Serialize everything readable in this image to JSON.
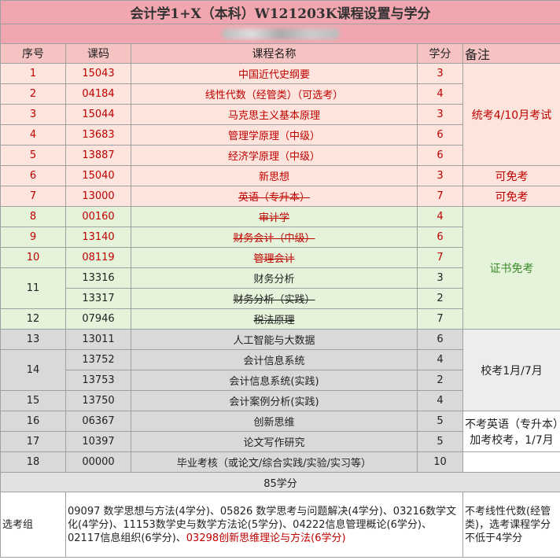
{
  "title": "会计学1+X（本科）W121203K课程设置与学分",
  "header": [
    "序号",
    "课码",
    "课程名称",
    "学分",
    "备注"
  ],
  "groups": [
    {
      "color": "#fde4dc",
      "note": "统考4/10月考试",
      "note_color": "#c00000",
      "rows": [
        {
          "no": 1,
          "text_color": "#c00000",
          "courses": [
            {
              "code": "15043",
              "name": "中国近代史纲要",
              "credits": 3
            }
          ]
        },
        {
          "no": 2,
          "text_color": "#c00000",
          "courses": [
            {
              "code": "04184",
              "name": "线性代数（经管类）（可选考）",
              "credits": 4
            }
          ]
        },
        {
          "no": 3,
          "text_color": "#c00000",
          "courses": [
            {
              "code": "15044",
              "name": "马克思主义基本原理",
              "credits": 3
            }
          ]
        },
        {
          "no": 4,
          "text_color": "#c00000",
          "courses": [
            {
              "code": "13683",
              "name": "管理学原理（中级）",
              "credits": 6
            }
          ]
        },
        {
          "no": 5,
          "text_color": "#c00000",
          "courses": [
            {
              "code": "13887",
              "name": "经济学原理（中级）",
              "credits": 6
            }
          ]
        }
      ]
    },
    {
      "color": "#fde4dc",
      "note": "可免考",
      "note_color": "#c00000",
      "rows": [
        {
          "no": 6,
          "text_color": "#c00000",
          "courses": [
            {
              "code": "15040",
              "name": "新思想",
              "credits": 3
            }
          ]
        }
      ]
    },
    {
      "color": "#fde4dc",
      "note": "可免考",
      "note_color": "#c00000",
      "rows": [
        {
          "no": 7,
          "text_color": "#c00000",
          "courses": [
            {
              "code": "13000",
              "name": "英语（专升本）",
              "credits": 7,
              "strike": true
            }
          ]
        }
      ]
    },
    {
      "color": "#e5f3da",
      "note": "证书免考",
      "note_color": "#3a8a2a",
      "rows": [
        {
          "no": 8,
          "text_color": "#c00000",
          "courses": [
            {
              "code": "00160",
              "name": "审计学",
              "credits": 4,
              "strike": true
            }
          ]
        },
        {
          "no": 9,
          "text_color": "#c00000",
          "courses": [
            {
              "code": "13140",
              "name": "财务会计（中级）",
              "credits": 6,
              "strike": true
            }
          ]
        },
        {
          "no": 10,
          "text_color": "#c00000",
          "courses": [
            {
              "code": "08119",
              "name": "管理会计",
              "credits": 7,
              "strike": true
            }
          ]
        },
        {
          "no": 11,
          "courses": [
            {
              "code": "13316",
              "name": "财务分析",
              "credits": 3
            },
            {
              "code": "13317",
              "name": "财务分析（实践）",
              "credits": 2,
              "strike": true
            }
          ]
        },
        {
          "no": 12,
          "courses": [
            {
              "code": "07946",
              "name": "税法原理",
              "credits": 7,
              "strike": true
            }
          ]
        }
      ]
    },
    {
      "color": "#d9d9d9",
      "note": "校考1月/7月",
      "note_background": "#ededed",
      "rows": [
        {
          "no": 13,
          "courses": [
            {
              "code": "13011",
              "name": "人工智能与大数据",
              "credits": 6
            }
          ]
        },
        {
          "no": 14,
          "courses": [
            {
              "code": "13752",
              "name": "会计信息系统",
              "credits": 4
            },
            {
              "code": "13753",
              "name": "会计信息系统(实践)",
              "credits": 2
            }
          ]
        },
        {
          "no": 15,
          "courses": [
            {
              "code": "13750",
              "name": "会计案例分析(实践)",
              "credits": 4
            }
          ]
        }
      ]
    },
    {
      "color": "#d9d9d9",
      "note": "不考英语（专升本）加考校考，1/7月",
      "note_background": "#ffffff",
      "rows": [
        {
          "no": 16,
          "courses": [
            {
              "code": "06367",
              "name": "创新思维",
              "credits": 5
            }
          ]
        },
        {
          "no": 17,
          "courses": [
            {
              "code": "10397",
              "name": "论文写作研究",
              "credits": 5
            }
          ]
        }
      ]
    },
    {
      "color": "#d9d9d9",
      "note_background": "#ffffff",
      "rows": [
        {
          "no": 18,
          "courses": [
            {
              "code": "00000",
              "name": "毕业考核（或论文/综合实践/实验/实习等）",
              "credits": 10
            }
          ]
        }
      ]
    }
  ],
  "total": "85学分",
  "elective": {
    "label": "选考组",
    "parts": [
      {
        "text": "09097 数学思想与方法(4学分)、05826 数学思考与问题解决(4学分)、03216数学文化(4学分)、11153数学史与数学方法论(5学分)、04222信息管理概论(6学分)、02117信息组织(6学分)、"
      },
      {
        "text": "03298创新思维理论与方法(6学分)",
        "color": "#c00000"
      }
    ],
    "note": "不考线性代数(经管类)，选考课程学分不低于4学分"
  }
}
